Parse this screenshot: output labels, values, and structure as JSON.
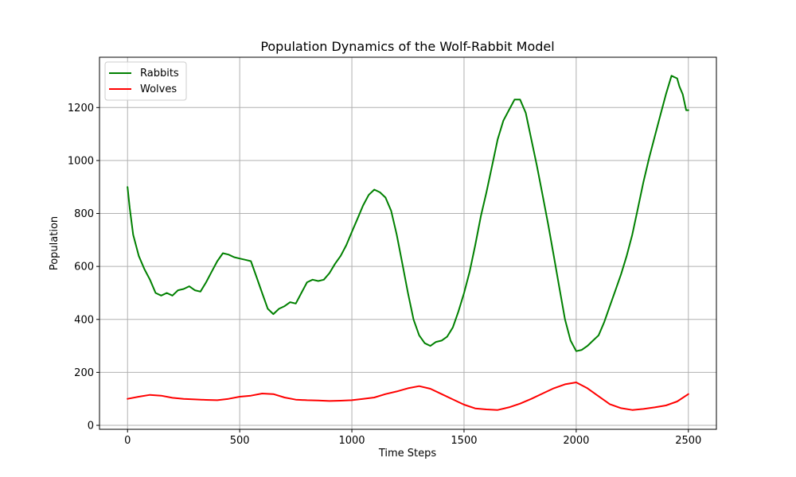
{
  "chart_data": {
    "type": "line",
    "title": "Population Dynamics of the Wolf-Rabbit Model",
    "xlabel": "Time Steps",
    "ylabel": "Population",
    "xlim": [
      -125,
      2625
    ],
    "ylim": [
      -15,
      1390
    ],
    "xticks": [
      0,
      500,
      1000,
      1500,
      2000,
      2500
    ],
    "yticks": [
      0,
      200,
      400,
      600,
      800,
      1000,
      1200
    ],
    "grid": true,
    "legend_position": "upper-left",
    "series": [
      {
        "name": "Rabbits",
        "color": "#008000",
        "x": [
          0,
          10,
          25,
          50,
          75,
          100,
          125,
          150,
          175,
          200,
          225,
          250,
          275,
          300,
          325,
          350,
          375,
          400,
          425,
          450,
          475,
          500,
          525,
          550,
          575,
          600,
          625,
          650,
          675,
          700,
          725,
          750,
          775,
          800,
          825,
          850,
          875,
          900,
          925,
          950,
          975,
          1000,
          1025,
          1050,
          1075,
          1100,
          1125,
          1150,
          1175,
          1200,
          1225,
          1250,
          1275,
          1300,
          1325,
          1350,
          1375,
          1400,
          1425,
          1450,
          1475,
          1500,
          1525,
          1550,
          1575,
          1600,
          1625,
          1650,
          1675,
          1700,
          1725,
          1750,
          1775,
          1800,
          1825,
          1850,
          1875,
          1900,
          1925,
          1950,
          1975,
          2000,
          2025,
          2050,
          2075,
          2100,
          2125,
          2150,
          2175,
          2200,
          2225,
          2250,
          2275,
          2300,
          2325,
          2350,
          2375,
          2400,
          2425,
          2450,
          2460,
          2475,
          2490,
          2500
        ],
        "values": [
          900,
          820,
          720,
          640,
          590,
          550,
          500,
          490,
          500,
          490,
          510,
          515,
          525,
          510,
          505,
          540,
          580,
          620,
          650,
          645,
          635,
          630,
          625,
          620,
          560,
          500,
          440,
          420,
          440,
          450,
          465,
          460,
          500,
          540,
          550,
          545,
          550,
          575,
          610,
          640,
          680,
          730,
          780,
          830,
          870,
          890,
          880,
          860,
          810,
          720,
          610,
          500,
          400,
          340,
          310,
          300,
          315,
          320,
          335,
          370,
          430,
          500,
          580,
          680,
          790,
          880,
          980,
          1080,
          1150,
          1190,
          1230,
          1230,
          1180,
          1080,
          980,
          870,
          760,
          640,
          520,
          400,
          320,
          280,
          285,
          300,
          320,
          340,
          390,
          450,
          510,
          570,
          640,
          720,
          820,
          920,
          1010,
          1090,
          1170,
          1250,
          1320,
          1310,
          1280,
          1250,
          1190,
          1190
        ]
      },
      {
        "name": "Wolves",
        "color": "#ff0000",
        "x": [
          0,
          50,
          100,
          150,
          200,
          250,
          300,
          350,
          400,
          450,
          500,
          550,
          600,
          650,
          700,
          750,
          800,
          850,
          900,
          950,
          1000,
          1050,
          1100,
          1150,
          1200,
          1250,
          1300,
          1350,
          1400,
          1450,
          1500,
          1550,
          1600,
          1650,
          1700,
          1750,
          1800,
          1850,
          1900,
          1950,
          2000,
          2050,
          2100,
          2150,
          2200,
          2250,
          2300,
          2350,
          2400,
          2450,
          2500
        ],
        "values": [
          100,
          108,
          115,
          112,
          104,
          100,
          98,
          96,
          95,
          100,
          108,
          112,
          120,
          118,
          105,
          97,
          95,
          94,
          92,
          93,
          95,
          100,
          105,
          118,
          128,
          140,
          148,
          138,
          118,
          98,
          78,
          64,
          60,
          58,
          68,
          82,
          100,
          120,
          140,
          155,
          162,
          140,
          110,
          80,
          65,
          58,
          62,
          68,
          75,
          90,
          118
        ]
      }
    ]
  }
}
